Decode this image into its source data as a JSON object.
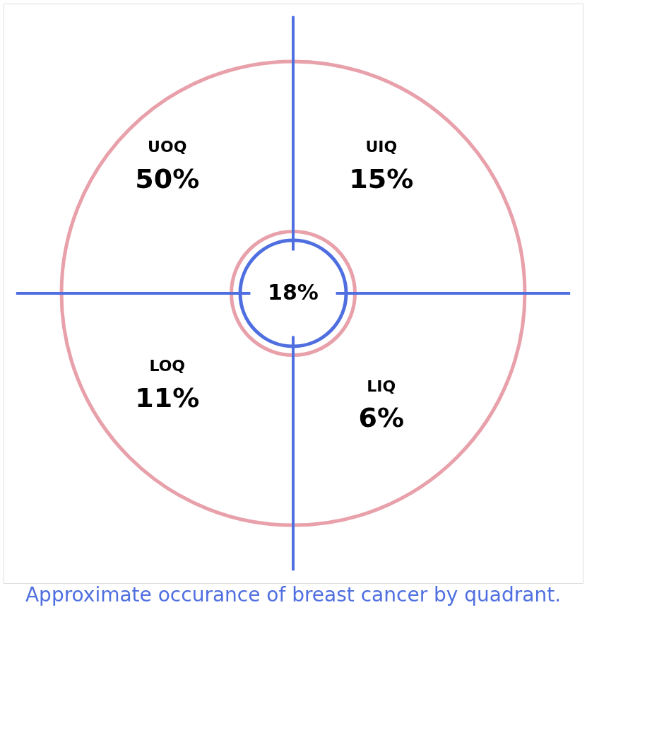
{
  "chart_data": {
    "type": "other",
    "title": "Approximate occurance of breast cancer by quadrant.",
    "categories": [
      "UOQ",
      "UIQ",
      "LOQ",
      "LIQ"
    ],
    "values": [
      50,
      15,
      11,
      6
    ],
    "value_labels": [
      "50%",
      "15%",
      "11%",
      "6%"
    ],
    "annotations": [
      "18%"
    ]
  }
}
